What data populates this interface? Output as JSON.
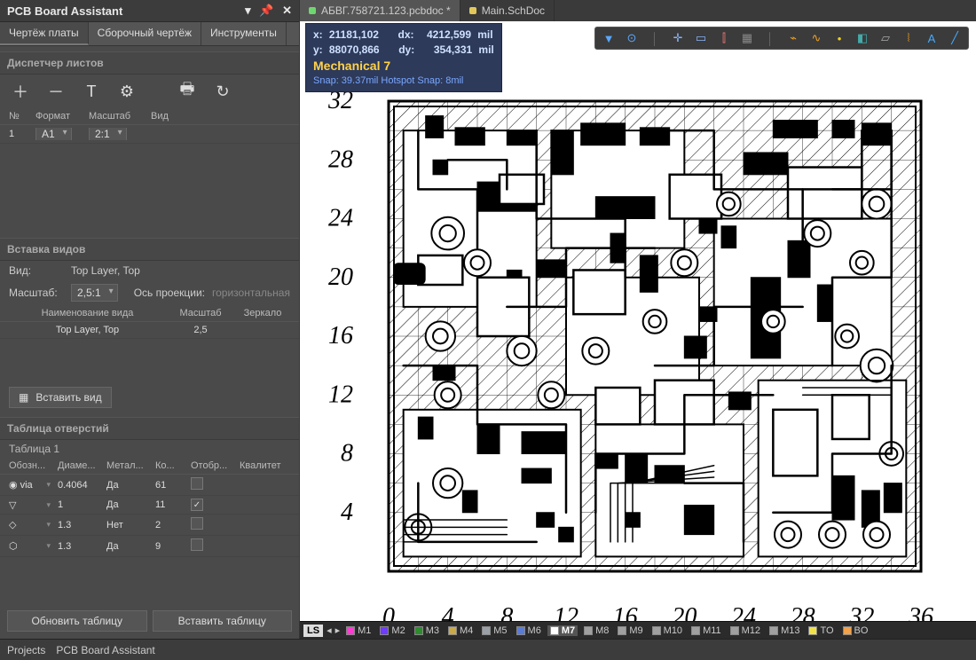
{
  "panel": {
    "title": "PCB Board Assistant",
    "tabs": [
      "Чертёж платы",
      "Сборочный чертёж",
      "Инструменты"
    ],
    "active_tab": 0,
    "sheets": {
      "header": "Диспетчер листов",
      "cols": [
        "№",
        "Формат",
        "Масштаб",
        "Вид"
      ],
      "rows": [
        {
          "n": "1",
          "format": "A1",
          "scale": "2:1",
          "view": ""
        }
      ]
    },
    "views": {
      "header": "Вставка видов",
      "view_label": "Вид:",
      "view_value": "Top Layer, Top",
      "scale_label": "Масштаб:",
      "scale_value": "2,5:1",
      "proj_label": "Ось проекции:",
      "proj_value": "горизонтальная",
      "cols": [
        "Наименование вида",
        "Масштаб",
        "Зеркало"
      ],
      "rows": [
        {
          "name": "Top Layer, Top",
          "scale": "2,5",
          "mirror": ""
        }
      ],
      "insert_btn": "Вставить вид"
    },
    "holes": {
      "header": "Таблица отверстий",
      "sub": "Таблица 1",
      "cols": [
        "Обозн...",
        "Диаме...",
        "Метал...",
        "Ко...",
        "Отобр...",
        "Квалитет"
      ],
      "rows": [
        {
          "sym": "via",
          "d": "0.4064",
          "met": "Да",
          "cnt": "61",
          "show": "",
          "q": ""
        },
        {
          "sym": "▽",
          "d": "1",
          "met": "Да",
          "cnt": "11",
          "show": "✓",
          "q": ""
        },
        {
          "sym": "◇",
          "d": "1.3",
          "met": "Нет",
          "cnt": "2",
          "show": "",
          "q": ""
        },
        {
          "sym": "⬡",
          "d": "1.3",
          "met": "Да",
          "cnt": "9",
          "show": "",
          "q": ""
        }
      ],
      "btn_update": "Обновить таблицу",
      "btn_insert": "Вставить таблицу"
    }
  },
  "editor": {
    "file_tabs": [
      {
        "name": "АБВГ.758721.123.pcbdoc *",
        "color": "#6fd66f",
        "active": true
      },
      {
        "name": "Main.SchDoc",
        "color": "#e2c85a",
        "active": false
      }
    ],
    "info": {
      "x_lbl": "x:",
      "x": "21181,102",
      "dx_lbl": "dx:",
      "dx": "4212,599",
      "unit": "mil",
      "y_lbl": "y:",
      "y": "88070,866",
      "dy_lbl": "dy:",
      "dy": "354,331",
      "layer": "Mechanical 7",
      "snap": "Snap: 39.37mil Hotspot Snap: 8mil"
    },
    "yticks": [
      "32",
      "28",
      "24",
      "20",
      "16",
      "12",
      "8",
      "4"
    ],
    "xticks": [
      "0",
      "4",
      "8",
      "12",
      "16",
      "20",
      "24",
      "28",
      "32",
      "36"
    ]
  },
  "layer_bar": {
    "ls": "LS",
    "items": [
      {
        "c": "#ff3bd4",
        "t": "M1"
      },
      {
        "c": "#6f3bff",
        "t": "M2"
      },
      {
        "c": "#2e8b2e",
        "t": "M3"
      },
      {
        "c": "#c9a94a",
        "t": "M4"
      },
      {
        "c": "#9aa0a6",
        "t": "M5"
      },
      {
        "c": "#5a7bd6",
        "t": "M6"
      },
      {
        "c": "#ffffff",
        "t": "M7",
        "active": true
      },
      {
        "c": "#a0a0a0",
        "t": "M8"
      },
      {
        "c": "#a0a0a0",
        "t": "M9"
      },
      {
        "c": "#a0a0a0",
        "t": "M10"
      },
      {
        "c": "#a0a0a0",
        "t": "M11"
      },
      {
        "c": "#a0a0a0",
        "t": "M12"
      },
      {
        "c": "#a0a0a0",
        "t": "M13"
      },
      {
        "c": "#f2e24a",
        "t": "TO"
      },
      {
        "c": "#f2a24a",
        "t": "BO"
      }
    ]
  },
  "status": {
    "projects": "Projects",
    "assistant": "PCB Board Assistant"
  },
  "tool_colors": [
    "#5aa7ff",
    "#5aa7ff",
    "#8ab4f8",
    "#8ab4f8",
    "#e57373",
    "#888",
    "#f0a020",
    "#f0a020",
    "#f0d020",
    "#4aa",
    "#aaa",
    "#f0a020",
    "#4af",
    "#4af"
  ]
}
